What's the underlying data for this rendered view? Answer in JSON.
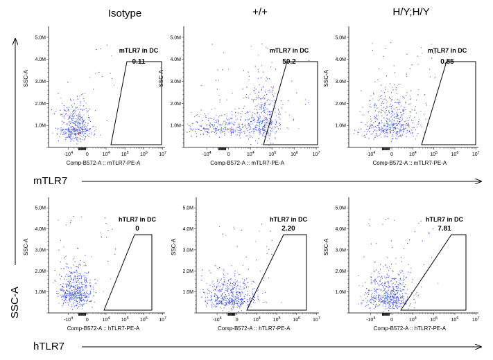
{
  "figure": {
    "columns": [
      "Isotype",
      "+/+",
      "H/Y;H/Y"
    ],
    "row_labels": [
      "mTLR7",
      "hTLR7"
    ],
    "y_axis_label": "SSC-A"
  },
  "chart_data": [
    {
      "type": "scatter",
      "row": 0,
      "col": 0,
      "ylabel": "SSC-A",
      "xlabel": "Comp-B572-A :: mTLR7-PE-A",
      "x_ticks": [
        "-10^4",
        "0",
        "10^4",
        "10^5",
        "10^6",
        "10^7"
      ],
      "y_ticks": [
        "1.0M",
        "2.0M",
        "3.0M",
        "4.0M",
        "5.0M"
      ],
      "ylim": [
        0,
        5500000
      ],
      "gate": {
        "name": "mTLR7 in DC",
        "value": "0.11"
      }
    },
    {
      "type": "scatter",
      "row": 0,
      "col": 1,
      "ylabel": "SSC-A",
      "xlabel": "Comp-B572-A :: mTLR7-PE-A",
      "x_ticks": [
        "-10^4",
        "0",
        "10^4",
        "10^5",
        "10^6",
        "10^7"
      ],
      "y_ticks": [
        "1.0M",
        "2.0M",
        "3.0M",
        "4.0M",
        "5.0M"
      ],
      "ylim": [
        0,
        5500000
      ],
      "gate": {
        "name": "mTLR7 in DC",
        "value": "50.2"
      }
    },
    {
      "type": "scatter",
      "row": 0,
      "col": 2,
      "ylabel": "SSC-A",
      "xlabel": "Comp-B572-A :: mTLR7-PE-A",
      "x_ticks": [
        "-10^4",
        "0",
        "10^4",
        "10^5",
        "10^6",
        "10^7"
      ],
      "y_ticks": [
        "1.0M",
        "2.0M",
        "3.0M",
        "4.0M",
        "5.0M"
      ],
      "ylim": [
        0,
        5500000
      ],
      "gate": {
        "name": "mTLR7 in DC",
        "value": "0.85"
      }
    },
    {
      "type": "scatter",
      "row": 1,
      "col": 0,
      "ylabel": "SSC-A",
      "xlabel": "Comp-B572-A :: hTLR7-PE-A",
      "x_ticks": [
        "-10^4",
        "0",
        "10^4",
        "10^5",
        "10^6",
        "10^7"
      ],
      "y_ticks": [
        "1.0M",
        "2.0M",
        "3.0M",
        "4.0M",
        "5.0M"
      ],
      "ylim": [
        0,
        5500000
      ],
      "gate": {
        "name": "hTLR7 in DC",
        "value": "0"
      }
    },
    {
      "type": "scatter",
      "row": 1,
      "col": 1,
      "ylabel": "SSC-A",
      "xlabel": "Comp-B572-A :: hTLR7-PE-A",
      "x_ticks": [
        "-10^4",
        "0",
        "10^4",
        "10^5",
        "10^6",
        "10^7"
      ],
      "y_ticks": [
        "1.0M",
        "2.0M",
        "3.0M",
        "4.0M",
        "5.0M"
      ],
      "ylim": [
        0,
        5500000
      ],
      "gate": {
        "name": "hTLR7 in DC",
        "value": "2.20"
      }
    },
    {
      "type": "scatter",
      "row": 1,
      "col": 2,
      "ylabel": "SSC-A",
      "xlabel": "Comp-B572-A :: hTLR7-PE-A",
      "x_ticks": [
        "-10^4",
        "0",
        "10^4",
        "10^5",
        "10^6",
        "10^7"
      ],
      "y_ticks": [
        "1.0M",
        "2.0M",
        "3.0M",
        "4.0M",
        "5.0M"
      ],
      "ylim": [
        0,
        5500000
      ],
      "gate": {
        "name": "hTLR7 in DC",
        "value": "7.81"
      }
    }
  ]
}
